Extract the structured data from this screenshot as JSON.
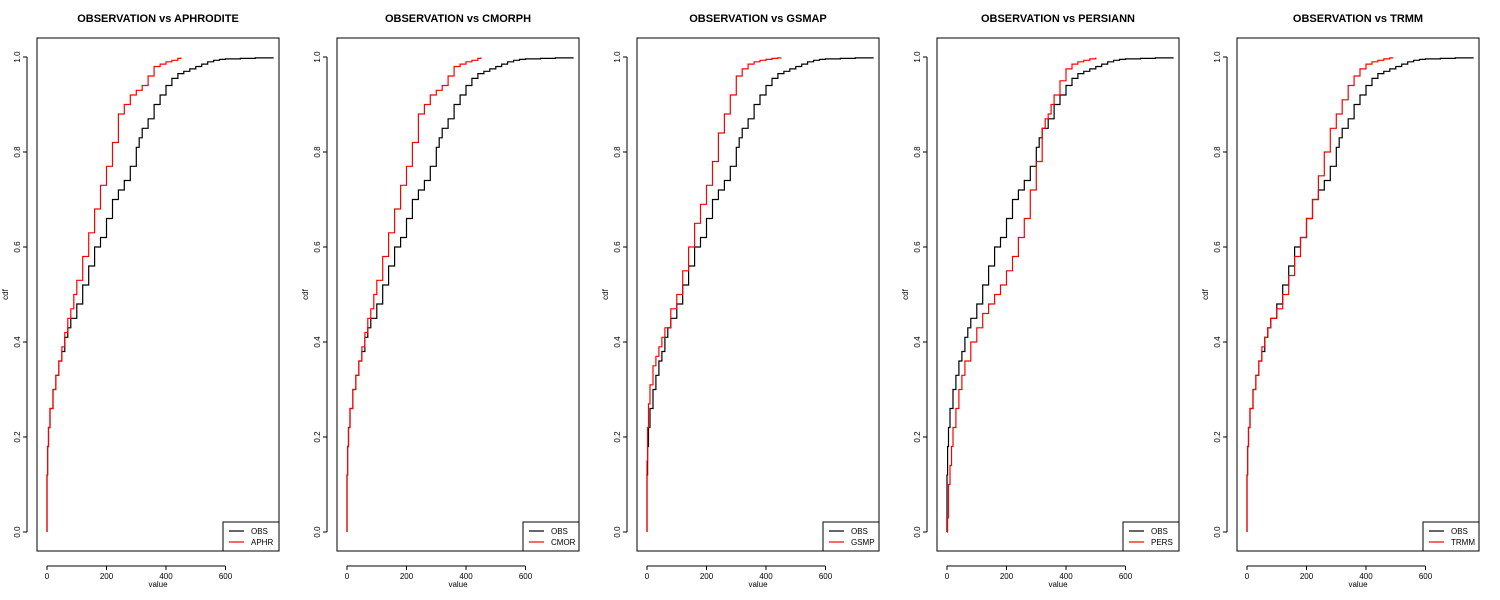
{
  "chart_data": [
    {
      "type": "line",
      "title": "OBSERVATION vs APHRODITE",
      "xlabel": "value",
      "ylabel": "cdf",
      "xlim": [
        0,
        760
      ],
      "ylim": [
        0,
        1.0
      ],
      "x_ticks": [
        "0",
        "200",
        "400",
        "600"
      ],
      "y_ticks": [
        "0.0",
        "0.2",
        "0.4",
        "0.6",
        "0.8",
        "1.0"
      ],
      "legend_position": "bottom-right",
      "series": [
        {
          "name": "OBS",
          "color": "#000000",
          "x": [
            0,
            0,
            2,
            5,
            10,
            20,
            30,
            40,
            50,
            60,
            70,
            80,
            100,
            120,
            140,
            160,
            180,
            200,
            220,
            240,
            260,
            280,
            300,
            310,
            320,
            340,
            360,
            380,
            400,
            420,
            440,
            460,
            480,
            500,
            520,
            540,
            560,
            580,
            600,
            650,
            700,
            760
          ],
          "y": [
            0,
            0.12,
            0.18,
            0.22,
            0.26,
            0.3,
            0.33,
            0.36,
            0.38,
            0.41,
            0.43,
            0.45,
            0.48,
            0.52,
            0.56,
            0.6,
            0.62,
            0.66,
            0.7,
            0.72,
            0.74,
            0.77,
            0.81,
            0.83,
            0.85,
            0.87,
            0.9,
            0.92,
            0.94,
            0.955,
            0.965,
            0.97,
            0.975,
            0.98,
            0.985,
            0.99,
            0.993,
            0.995,
            0.996,
            0.997,
            0.998,
            0.999
          ]
        },
        {
          "name": "APHR",
          "color": "#ff0000",
          "x": [
            0,
            0,
            2,
            5,
            10,
            20,
            30,
            40,
            50,
            60,
            70,
            80,
            90,
            100,
            120,
            140,
            160,
            180,
            200,
            220,
            240,
            260,
            280,
            300,
            320,
            340,
            360,
            380,
            400,
            420,
            440,
            450
          ],
          "y": [
            0,
            0.12,
            0.18,
            0.22,
            0.26,
            0.3,
            0.33,
            0.36,
            0.39,
            0.42,
            0.45,
            0.47,
            0.5,
            0.53,
            0.58,
            0.63,
            0.68,
            0.73,
            0.77,
            0.82,
            0.88,
            0.9,
            0.92,
            0.93,
            0.94,
            0.96,
            0.98,
            0.985,
            0.99,
            0.993,
            0.997,
            0.999
          ]
        }
      ]
    },
    {
      "type": "line",
      "title": "OBSERVATION vs CMORPH",
      "xlabel": "value",
      "ylabel": "cdf",
      "xlim": [
        0,
        760
      ],
      "ylim": [
        0,
        1.0
      ],
      "x_ticks": [
        "0",
        "200",
        "400",
        "600"
      ],
      "y_ticks": [
        "0.0",
        "0.2",
        "0.4",
        "0.6",
        "0.8",
        "1.0"
      ],
      "legend_position": "bottom-right",
      "series": [
        {
          "name": "OBS",
          "color": "#000000",
          "x": [
            0,
            0,
            2,
            5,
            10,
            20,
            30,
            40,
            50,
            60,
            70,
            80,
            100,
            120,
            140,
            160,
            180,
            200,
            220,
            240,
            260,
            280,
            300,
            310,
            320,
            340,
            360,
            380,
            400,
            420,
            440,
            460,
            480,
            500,
            520,
            540,
            560,
            580,
            600,
            650,
            700,
            760
          ],
          "y": [
            0,
            0.12,
            0.18,
            0.22,
            0.26,
            0.3,
            0.33,
            0.36,
            0.38,
            0.41,
            0.43,
            0.45,
            0.48,
            0.52,
            0.56,
            0.6,
            0.62,
            0.66,
            0.7,
            0.72,
            0.74,
            0.77,
            0.81,
            0.83,
            0.85,
            0.87,
            0.9,
            0.92,
            0.94,
            0.955,
            0.965,
            0.97,
            0.975,
            0.98,
            0.985,
            0.99,
            0.993,
            0.995,
            0.996,
            0.997,
            0.998,
            0.999
          ]
        },
        {
          "name": "CMOR",
          "color": "#ff0000",
          "x": [
            0,
            0,
            2,
            5,
            10,
            20,
            30,
            40,
            50,
            60,
            70,
            80,
            90,
            100,
            120,
            140,
            160,
            180,
            200,
            220,
            240,
            260,
            280,
            300,
            320,
            340,
            360,
            380,
            400,
            420,
            440,
            450
          ],
          "y": [
            0,
            0.12,
            0.18,
            0.22,
            0.26,
            0.3,
            0.33,
            0.36,
            0.39,
            0.42,
            0.45,
            0.47,
            0.5,
            0.53,
            0.58,
            0.63,
            0.68,
            0.73,
            0.77,
            0.82,
            0.88,
            0.9,
            0.92,
            0.93,
            0.94,
            0.96,
            0.98,
            0.985,
            0.99,
            0.993,
            0.997,
            0.999
          ]
        }
      ]
    },
    {
      "type": "line",
      "title": "OBSERVATION vs GSMAP",
      "xlabel": "value",
      "ylabel": "cdf",
      "xlim": [
        0,
        760
      ],
      "ylim": [
        0,
        1.0
      ],
      "x_ticks": [
        "0",
        "200",
        "400",
        "600"
      ],
      "y_ticks": [
        "0.0",
        "0.2",
        "0.4",
        "0.6",
        "0.8",
        "1.0"
      ],
      "legend_position": "bottom-right",
      "series": [
        {
          "name": "OBS",
          "color": "#000000",
          "x": [
            0,
            0,
            2,
            5,
            10,
            20,
            30,
            40,
            50,
            60,
            70,
            80,
            100,
            120,
            140,
            160,
            180,
            200,
            220,
            240,
            260,
            280,
            300,
            310,
            320,
            340,
            360,
            380,
            400,
            420,
            440,
            460,
            480,
            500,
            520,
            540,
            560,
            580,
            600,
            650,
            700,
            760
          ],
          "y": [
            0,
            0.12,
            0.18,
            0.22,
            0.26,
            0.3,
            0.33,
            0.36,
            0.38,
            0.41,
            0.43,
            0.45,
            0.48,
            0.52,
            0.56,
            0.6,
            0.62,
            0.66,
            0.7,
            0.72,
            0.74,
            0.77,
            0.81,
            0.83,
            0.85,
            0.87,
            0.9,
            0.92,
            0.94,
            0.955,
            0.965,
            0.97,
            0.975,
            0.98,
            0.985,
            0.99,
            0.993,
            0.995,
            0.996,
            0.997,
            0.998,
            0.999
          ]
        },
        {
          "name": "GSMP",
          "color": "#ff0000",
          "x": [
            0,
            0,
            2,
            5,
            10,
            20,
            30,
            40,
            50,
            60,
            80,
            100,
            120,
            140,
            160,
            180,
            200,
            220,
            240,
            260,
            280,
            300,
            320,
            340,
            360,
            380,
            400,
            420,
            440,
            450
          ],
          "y": [
            0,
            0.15,
            0.22,
            0.27,
            0.31,
            0.35,
            0.37,
            0.39,
            0.41,
            0.43,
            0.47,
            0.5,
            0.55,
            0.6,
            0.65,
            0.69,
            0.73,
            0.78,
            0.84,
            0.88,
            0.92,
            0.96,
            0.975,
            0.985,
            0.99,
            0.993,
            0.995,
            0.997,
            0.998,
            0.999
          ]
        }
      ]
    },
    {
      "type": "line",
      "title": "OBSERVATION vs PERSIANN",
      "xlabel": "value",
      "ylabel": "cdf",
      "xlim": [
        0,
        760
      ],
      "ylim": [
        0,
        1.0
      ],
      "x_ticks": [
        "0",
        "200",
        "400",
        "600"
      ],
      "y_ticks": [
        "0.0",
        "0.2",
        "0.4",
        "0.6",
        "0.8",
        "1.0"
      ],
      "legend_position": "bottom-right",
      "series": [
        {
          "name": "OBS",
          "color": "#000000",
          "x": [
            0,
            0,
            2,
            5,
            10,
            20,
            30,
            40,
            50,
            60,
            70,
            80,
            100,
            120,
            140,
            160,
            180,
            200,
            220,
            240,
            260,
            280,
            300,
            310,
            320,
            340,
            360,
            380,
            400,
            420,
            440,
            460,
            480,
            500,
            520,
            540,
            560,
            580,
            600,
            650,
            700,
            760
          ],
          "y": [
            0,
            0.12,
            0.18,
            0.22,
            0.26,
            0.3,
            0.33,
            0.36,
            0.38,
            0.41,
            0.43,
            0.45,
            0.48,
            0.52,
            0.56,
            0.6,
            0.62,
            0.66,
            0.7,
            0.72,
            0.74,
            0.77,
            0.81,
            0.83,
            0.85,
            0.87,
            0.9,
            0.92,
            0.94,
            0.955,
            0.965,
            0.97,
            0.975,
            0.98,
            0.985,
            0.99,
            0.993,
            0.995,
            0.996,
            0.997,
            0.998,
            0.999
          ]
        },
        {
          "name": "PERS",
          "color": "#ff0000",
          "x": [
            0,
            2,
            5,
            10,
            15,
            20,
            30,
            40,
            50,
            60,
            80,
            100,
            120,
            140,
            160,
            180,
            200,
            220,
            240,
            260,
            280,
            300,
            320,
            330,
            340,
            350,
            360,
            380,
            400,
            420,
            440,
            460,
            480,
            500
          ],
          "y": [
            0,
            0.03,
            0.1,
            0.14,
            0.18,
            0.22,
            0.26,
            0.3,
            0.33,
            0.36,
            0.4,
            0.43,
            0.46,
            0.48,
            0.5,
            0.52,
            0.55,
            0.58,
            0.62,
            0.66,
            0.72,
            0.78,
            0.85,
            0.87,
            0.88,
            0.9,
            0.92,
            0.95,
            0.975,
            0.985,
            0.99,
            0.993,
            0.996,
            0.999
          ]
        }
      ]
    },
    {
      "type": "line",
      "title": "OBSERVATION vs TRMM",
      "xlabel": "value",
      "ylabel": "cdf",
      "xlim": [
        0,
        760
      ],
      "ylim": [
        0,
        1.0
      ],
      "x_ticks": [
        "0",
        "200",
        "400",
        "600"
      ],
      "y_ticks": [
        "0.0",
        "0.2",
        "0.4",
        "0.6",
        "0.8",
        "1.0"
      ],
      "legend_position": "bottom-right",
      "series": [
        {
          "name": "OBS",
          "color": "#000000",
          "x": [
            0,
            0,
            2,
            5,
            10,
            20,
            30,
            40,
            50,
            60,
            70,
            80,
            100,
            120,
            140,
            160,
            180,
            200,
            220,
            240,
            260,
            280,
            300,
            310,
            320,
            340,
            360,
            380,
            400,
            420,
            440,
            460,
            480,
            500,
            520,
            540,
            560,
            580,
            600,
            650,
            700,
            760
          ],
          "y": [
            0,
            0.12,
            0.18,
            0.22,
            0.26,
            0.3,
            0.33,
            0.36,
            0.38,
            0.41,
            0.43,
            0.45,
            0.48,
            0.52,
            0.56,
            0.6,
            0.62,
            0.66,
            0.7,
            0.72,
            0.74,
            0.77,
            0.81,
            0.83,
            0.85,
            0.87,
            0.9,
            0.92,
            0.94,
            0.955,
            0.965,
            0.97,
            0.975,
            0.98,
            0.985,
            0.99,
            0.993,
            0.995,
            0.996,
            0.997,
            0.998,
            0.999
          ]
        },
        {
          "name": "TRMM",
          "color": "#ff0000",
          "x": [
            0,
            0,
            2,
            5,
            10,
            20,
            30,
            40,
            50,
            60,
            70,
            80,
            100,
            120,
            140,
            160,
            180,
            200,
            220,
            240,
            260,
            280,
            300,
            320,
            340,
            360,
            380,
            400,
            420,
            440,
            460,
            480,
            490
          ],
          "y": [
            0,
            0.12,
            0.18,
            0.22,
            0.26,
            0.3,
            0.33,
            0.36,
            0.39,
            0.41,
            0.43,
            0.45,
            0.47,
            0.5,
            0.54,
            0.58,
            0.62,
            0.66,
            0.7,
            0.75,
            0.8,
            0.85,
            0.88,
            0.91,
            0.94,
            0.96,
            0.975,
            0.985,
            0.99,
            0.993,
            0.996,
            0.998,
            0.999
          ]
        }
      ]
    }
  ]
}
